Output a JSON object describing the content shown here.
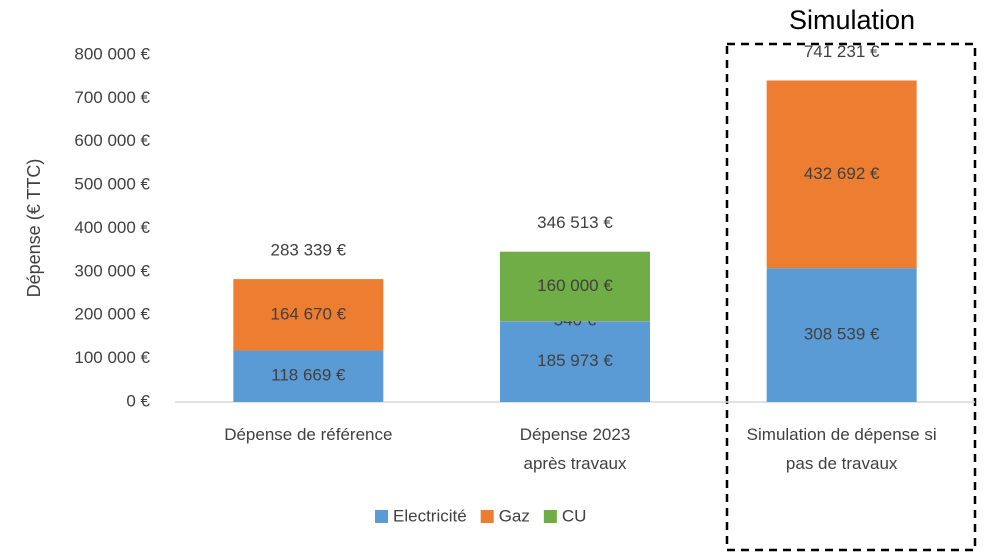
{
  "chart_data": {
    "type": "bar",
    "stacked": true,
    "y_label": "Dépense  (€ TTC)",
    "annotation": "Simulation",
    "categories": [
      "Dépense de référence",
      "Dépense 2023\naprès travaux",
      "Simulation de dépense si\npas de travaux"
    ],
    "series": [
      {
        "name": "Electricité",
        "color": "#5b9bd5",
        "values": [
          118669,
          185973,
          308539
        ],
        "value_labels": [
          "118 669 €",
          "185 973 €",
          "308 539 €"
        ]
      },
      {
        "name": "Gaz",
        "color": "#ed7d31",
        "values": [
          164670,
          540,
          432692
        ],
        "value_labels": [
          "164 670 €",
          "540 €",
          "432 692 €"
        ]
      },
      {
        "name": "CU",
        "color": "#70ad47",
        "values": [
          null,
          160000,
          null
        ],
        "value_labels": [
          null,
          "160 000 €",
          null
        ]
      }
    ],
    "totals": [
      283339,
      346513,
      741231
    ],
    "total_labels": [
      "283 339 €",
      "346 513 €",
      "741 231 €"
    ],
    "ylim": [
      0,
      800000
    ],
    "yticks": [
      {
        "value": 0,
        "label": "0 €"
      },
      {
        "value": 100000,
        "label": "100 000 €"
      },
      {
        "value": 200000,
        "label": "200 000 €"
      },
      {
        "value": 300000,
        "label": "300 000 €"
      },
      {
        "value": 400000,
        "label": "400 000 €"
      },
      {
        "value": 500000,
        "label": "500 000 €"
      },
      {
        "value": 600000,
        "label": "600 000 €"
      },
      {
        "value": 700000,
        "label": "700 000 €"
      },
      {
        "value": 800000,
        "label": "800 000 €"
      }
    ],
    "grid": false,
    "legend": "bottom"
  }
}
